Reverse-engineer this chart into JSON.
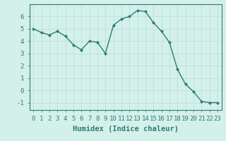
{
  "x": [
    0,
    1,
    2,
    3,
    4,
    5,
    6,
    7,
    8,
    9,
    10,
    11,
    12,
    13,
    14,
    15,
    16,
    17,
    18,
    19,
    20,
    21,
    22,
    23
  ],
  "y": [
    5.0,
    4.7,
    4.5,
    4.8,
    4.4,
    3.7,
    3.3,
    4.0,
    3.9,
    3.0,
    5.3,
    5.8,
    6.0,
    6.5,
    6.4,
    5.5,
    4.8,
    3.9,
    1.7,
    0.5,
    -0.1,
    -0.9,
    -1.0,
    -1.0
  ],
  "line_color": "#2e7d6e",
  "marker": "D",
  "marker_size": 2,
  "bg_color": "#d4f0eb",
  "grid_color": "#b8ddd8",
  "xlabel": "Humidex (Indice chaleur)",
  "xlim": [
    -0.5,
    23.5
  ],
  "ylim": [
    -1.6,
    7.0
  ],
  "yticks": [
    -1,
    0,
    1,
    2,
    3,
    4,
    5,
    6
  ],
  "xticks": [
    0,
    1,
    2,
    3,
    4,
    5,
    6,
    7,
    8,
    9,
    10,
    11,
    12,
    13,
    14,
    15,
    16,
    17,
    18,
    19,
    20,
    21,
    22,
    23
  ],
  "xtick_labels": [
    "0",
    "1",
    "2",
    "3",
    "4",
    "5",
    "6",
    "7",
    "8",
    "9",
    "10",
    "11",
    "12",
    "13",
    "14",
    "15",
    "16",
    "17",
    "18",
    "19",
    "20",
    "21",
    "22",
    "23"
  ],
  "tick_color": "#2e7d6e",
  "label_fontsize": 6.5,
  "xlabel_fontsize": 7.5
}
